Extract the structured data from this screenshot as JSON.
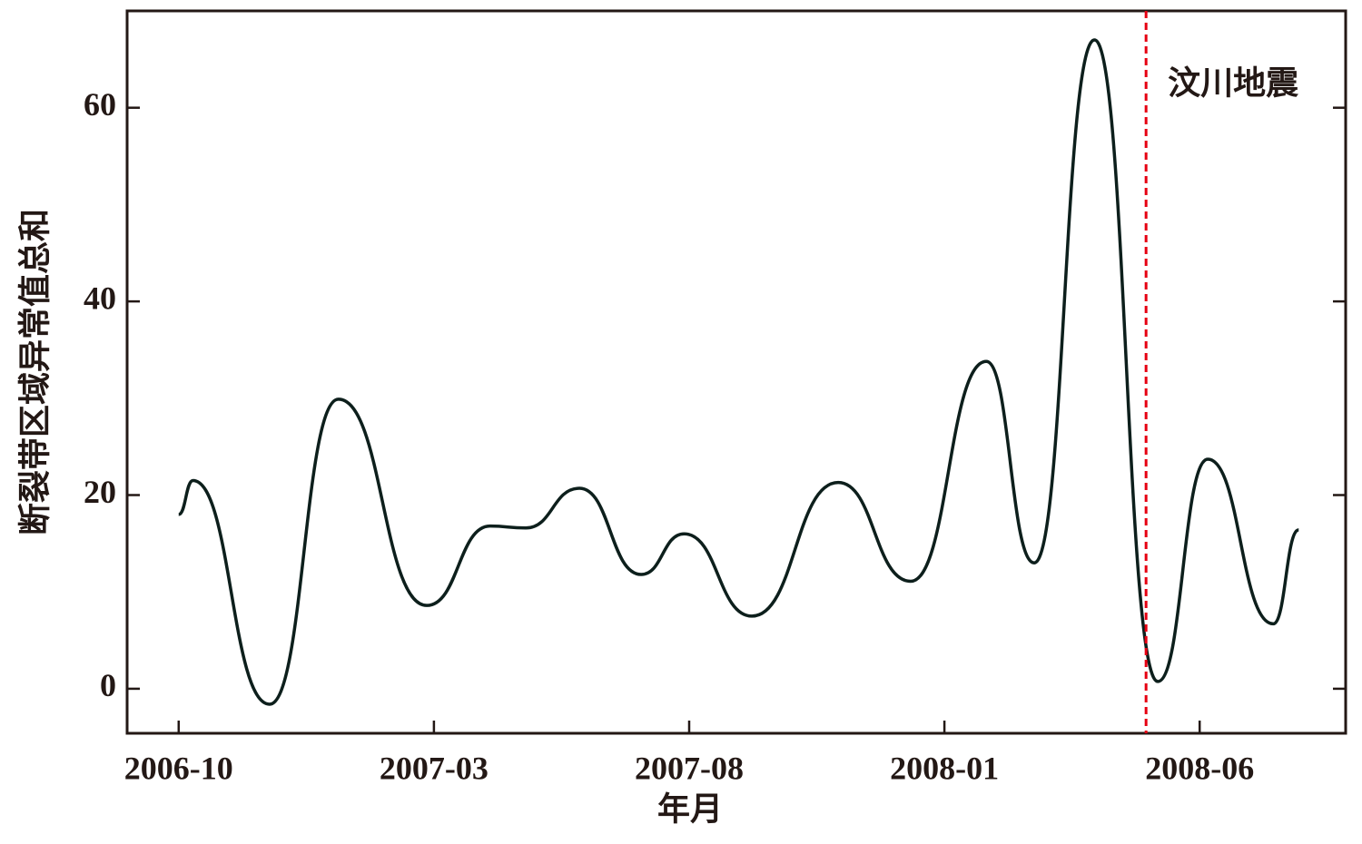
{
  "chart_data": {
    "type": "line",
    "xlabel": "年月",
    "ylabel": "断裂带区域异常值总和",
    "x": [
      0,
      0.28,
      1.78,
      3.13,
      4.86,
      6.1,
      6.8,
      7.85,
      9.06,
      9.9,
      11.23,
      12.92,
      14.34,
      15.82,
      16.76,
      17.94,
      19.18,
      20.16,
      21.44,
      21.94
    ],
    "series": [
      {
        "color": "#0d1f1c",
        "values": [
          18.0,
          21.5,
          -1.6,
          29.9,
          8.6,
          16.8,
          16.6,
          20.7,
          11.8,
          16.0,
          7.5,
          21.3,
          11.1,
          33.8,
          13.0,
          67.0,
          0.75,
          23.7,
          6.7,
          16.4
        ]
      }
    ],
    "xlim": [
      -1.01,
      22.86
    ],
    "xticks": [
      {
        "value": 0,
        "label": "2006-10"
      },
      {
        "value": 5,
        "label": "2007-03"
      },
      {
        "value": 10,
        "label": "2007-08"
      },
      {
        "value": 15,
        "label": "2008-01"
      },
      {
        "value": 20,
        "label": "2008-06"
      }
    ],
    "ylim": [
      -4.6,
      70
    ],
    "yticks": [
      0,
      20,
      40,
      60
    ],
    "vline": {
      "x": 18.95,
      "label": "汶川地震",
      "color": "#e60012"
    }
  }
}
